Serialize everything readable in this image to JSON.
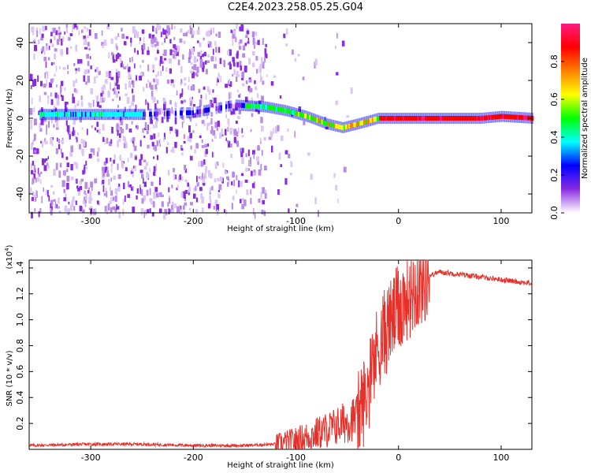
{
  "title": "C2E4.2023.258.05.25.G04",
  "chart_data": [
    {
      "type": "heatmap",
      "xlabel": "Height of straight line (km)",
      "ylabel": "Frequency (Hz)",
      "xlim": [
        -360,
        130
      ],
      "ylim": [
        -50,
        50
      ],
      "xticks": [
        -300,
        -200,
        -100,
        0,
        100
      ],
      "yticks": [
        -40,
        -20,
        0,
        20,
        40
      ],
      "colorbar": {
        "label": "Normalized spectral amplitude",
        "range": [
          0,
          1
        ],
        "ticks": [
          "0.0",
          "0.2",
          "0.4",
          "0.6",
          "0.8"
        ],
        "colors": [
          "#ffffff",
          "#8a2be2",
          "#0000ff",
          "#00ffff",
          "#00ff00",
          "#ffff00",
          "#ff8000",
          "#ff0000",
          "#ff1a80"
        ]
      },
      "ridge": {
        "x": [
          -350,
          -300,
          -250,
          -200,
          -160,
          -130,
          -110,
          -90,
          -70,
          -55,
          -40,
          -20,
          0,
          40,
          80,
          100,
          130
        ],
        "frequency": [
          2,
          2,
          2,
          3,
          7,
          6,
          4,
          1,
          -3,
          -5,
          -3,
          0,
          0,
          0,
          0,
          1,
          0
        ]
      }
    },
    {
      "type": "line",
      "xlabel": "Height of straight line (km)",
      "ylabel": "SNR (10 * v/v)",
      "yunit_multiplier": "(x10",
      "yunit_exponent": "4",
      "unit_suffix": ")",
      "xlim": [
        -360,
        130
      ],
      "ylim": [
        0,
        1.46
      ],
      "xticks": [
        -300,
        -200,
        -100,
        0,
        100
      ],
      "yticks": [
        0.2,
        0.4,
        0.6,
        0.8,
        1.0,
        1.2,
        1.4
      ],
      "ytick_labels": [
        "0.2",
        "0.4",
        "0.6",
        "0.8",
        "1.0",
        "1.2",
        "1.4"
      ],
      "color": "#e8302a",
      "series": [
        {
          "x": [
            -360,
            -300,
            -250,
            -200,
            -150,
            -120,
            -100,
            -80,
            -60,
            -40,
            -30,
            -20,
            -10,
            0,
            10,
            20,
            30,
            40,
            60,
            80,
            100,
            130
          ],
          "values": [
            0.03,
            0.04,
            0.04,
            0.03,
            0.03,
            0.04,
            0.07,
            0.12,
            0.18,
            0.25,
            0.45,
            0.8,
            0.95,
            1.08,
            1.2,
            1.28,
            1.34,
            1.37,
            1.35,
            1.33,
            1.31,
            1.28
          ]
        }
      ]
    }
  ]
}
